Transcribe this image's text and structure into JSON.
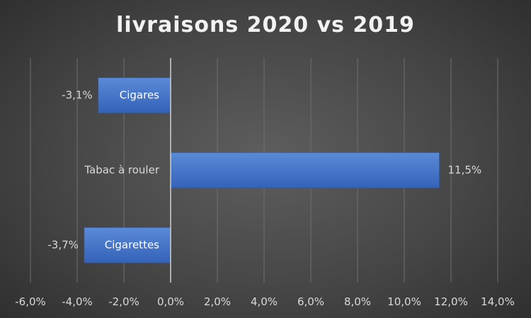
{
  "chart_data": {
    "type": "bar",
    "orientation": "horizontal",
    "title": "livraisons 2020 vs 2019",
    "categories": [
      "Cigares",
      "Tabac à rouler",
      "Cigarettes"
    ],
    "values": [
      -3.1,
      11.5,
      -3.7
    ],
    "data_labels": [
      "-3,1%",
      "11,5%",
      "-3,7%"
    ],
    "xlim": [
      -6,
      14
    ],
    "x_ticks": [
      -6,
      -4,
      -2,
      0,
      2,
      4,
      6,
      8,
      10,
      12,
      14
    ],
    "x_tick_labels": [
      "-6,0%",
      "-4,0%",
      "-2,0%",
      "0,0%",
      "2,0%",
      "4,0%",
      "6,0%",
      "8,0%",
      "10,0%",
      "12,0%",
      "14,0%"
    ],
    "grid": "vertical",
    "legend": "none",
    "bar_color": "#4472c4"
  }
}
